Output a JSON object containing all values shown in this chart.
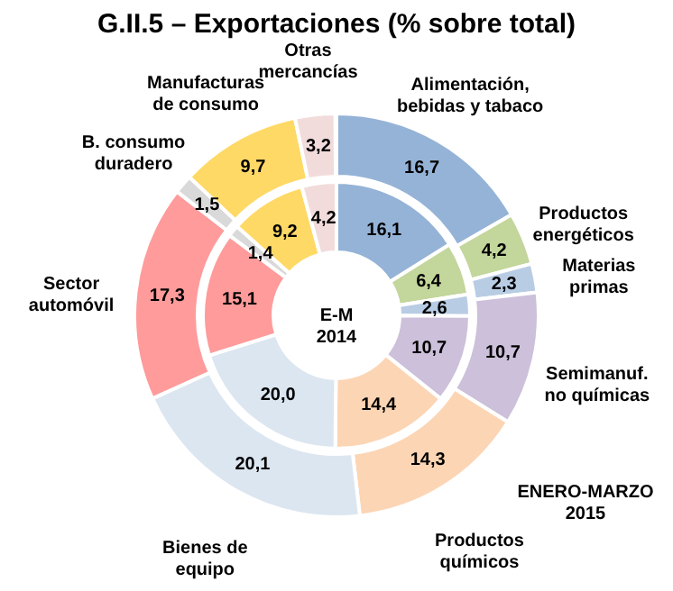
{
  "chart_data": {
    "type": "donut",
    "title": "G.II.5 – Exportaciones (% sobre total)",
    "categories": [
      "Alimentación,\nbebidas y tabaco",
      "Productos\nenergéticos",
      "Materias\nprimas",
      "Semimanuf.\nno químicas",
      "Productos\nquímicos",
      "Bienes de\nequipo",
      "Sector\nautomóvil",
      "B. consumo\nduradero",
      "Manufacturas\nde consumo",
      "Otras\nmercancías"
    ],
    "colors": [
      "#95b3d7",
      "#c3d69b",
      "#b8cce4",
      "#ccc0da",
      "#fcd5b4",
      "#dce6f1",
      "#ff9b9b",
      "#d9d9d9",
      "#ffd966",
      "#f2dcdb"
    ],
    "series": [
      {
        "name": "ENERO-MARZO\n2015",
        "values": [
          16.7,
          4.2,
          2.3,
          10.7,
          14.3,
          20.1,
          17.3,
          1.5,
          9.7,
          3.2
        ],
        "value_labels": [
          "16,7",
          "4,2",
          "2,3",
          "10,7",
          "14,3",
          "20,1",
          "17,3",
          "1,5",
          "9,7",
          "3,2"
        ]
      },
      {
        "name": "E-M\n2014",
        "values": [
          16.1,
          6.4,
          2.6,
          10.7,
          14.4,
          20.0,
          15.1,
          1.4,
          9.2,
          4.2
        ],
        "value_labels": [
          "16,1",
          "6,4",
          "2,6",
          "10,7",
          "14,4",
          "20,0",
          "15,1",
          "1,4",
          "9,2",
          "4,2"
        ]
      }
    ]
  }
}
